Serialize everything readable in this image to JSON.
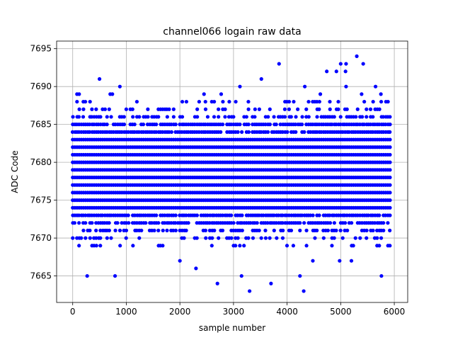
{
  "chart_data": {
    "type": "scatter",
    "title": "channel066 logain raw data",
    "xlabel": "sample number",
    "ylabel": "ADC Code",
    "xlim": [
      -300,
      6250
    ],
    "ylim": [
      7661.5,
      7696
    ],
    "xticks": [
      0,
      1000,
      2000,
      3000,
      4000,
      5000,
      6000
    ],
    "yticks": [
      7665,
      7670,
      7675,
      7680,
      7685,
      7690,
      7695
    ],
    "grid": true,
    "marker_color": "#0000ff",
    "series": [
      {
        "x_range": [
          0,
          5940
        ],
        "x_step": 40,
        "dense_values": [
          7669,
          7670,
          7671,
          7672,
          7673,
          7674,
          7675,
          7676,
          7677,
          7678,
          7679,
          7680,
          7681,
          7682,
          7683,
          7684,
          7685,
          7686,
          7687,
          7688
        ],
        "core_values": [
          7674,
          7675,
          7676,
          7677,
          7678,
          7679,
          7680,
          7681,
          7682,
          7683
        ],
        "outliers": [
          {
            "x": 270,
            "y": 7665
          },
          {
            "x": 790,
            "y": 7665
          },
          {
            "x": 2700,
            "y": 7664
          },
          {
            "x": 3300,
            "y": 7663
          },
          {
            "x": 3700,
            "y": 7664
          },
          {
            "x": 4310,
            "y": 7663
          },
          {
            "x": 4240,
            "y": 7665
          },
          {
            "x": 5760,
            "y": 7665
          },
          {
            "x": 3150,
            "y": 7665
          },
          {
            "x": 2300,
            "y": 7666
          },
          {
            "x": 2000,
            "y": 7667
          },
          {
            "x": 4480,
            "y": 7667
          },
          {
            "x": 4980,
            "y": 7667
          },
          {
            "x": 5200,
            "y": 7667
          },
          {
            "x": 500,
            "y": 7691
          },
          {
            "x": 880,
            "y": 7690
          },
          {
            "x": 3850,
            "y": 7693
          },
          {
            "x": 3520,
            "y": 7691
          },
          {
            "x": 3120,
            "y": 7690
          },
          {
            "x": 4330,
            "y": 7690
          },
          {
            "x": 4740,
            "y": 7692
          },
          {
            "x": 4920,
            "y": 7692
          },
          {
            "x": 5000,
            "y": 7693
          },
          {
            "x": 5100,
            "y": 7693
          },
          {
            "x": 5090,
            "y": 7692
          },
          {
            "x": 5300,
            "y": 7694
          },
          {
            "x": 5420,
            "y": 7693
          },
          {
            "x": 5100,
            "y": 7690
          },
          {
            "x": 5650,
            "y": 7690
          },
          {
            "x": 2450,
            "y": 7689
          },
          {
            "x": 2770,
            "y": 7689
          },
          {
            "x": 4620,
            "y": 7689
          },
          {
            "x": 5390,
            "y": 7689
          },
          {
            "x": 5750,
            "y": 7689
          },
          {
            "x": 80,
            "y": 7689
          },
          {
            "x": 120,
            "y": 7689
          },
          {
            "x": 700,
            "y": 7689
          },
          {
            "x": 740,
            "y": 7689
          }
        ]
      }
    ]
  }
}
